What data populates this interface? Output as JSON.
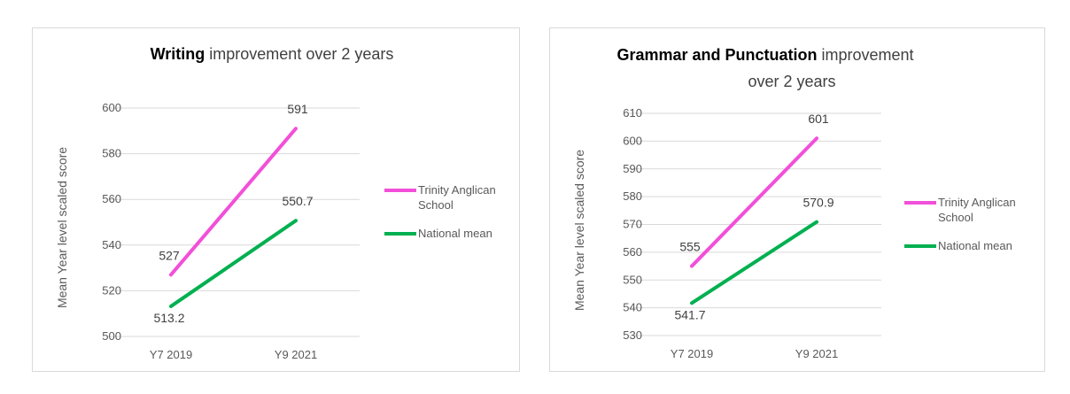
{
  "chart_data": [
    {
      "type": "line",
      "title_bold": "Writing",
      "title_rest": " improvement over 2 years",
      "title_line2": "",
      "ylabel": "Mean Year level scaled score",
      "xlabel": "",
      "categories": [
        "Y7 2019",
        "Y9 2021"
      ],
      "ylim": [
        500,
        600
      ],
      "ystep": 20,
      "yticks": [
        "500",
        "520",
        "540",
        "560",
        "580",
        "600"
      ],
      "grid": true,
      "legend_position": "right",
      "series": [
        {
          "name_line1": "Trinity Anglican",
          "name_line2": "School",
          "color": "#f24fd9",
          "values": [
            527,
            591
          ],
          "labels": [
            "527",
            "591"
          ]
        },
        {
          "name_line1": "National mean",
          "name_line2": "",
          "color": "#00b050",
          "values": [
            513.2,
            550.7
          ],
          "labels": [
            "513.2",
            "550.7"
          ]
        }
      ]
    },
    {
      "type": "line",
      "title_bold": "Grammar and Punctuation",
      "title_rest": " improvement",
      "title_line2": "over 2 years",
      "ylabel": "Mean Year level scaled score",
      "xlabel": "",
      "categories": [
        "Y7 2019",
        "Y9 2021"
      ],
      "ylim": [
        530,
        610
      ],
      "ystep": 10,
      "yticks": [
        "530",
        "540",
        "550",
        "560",
        "570",
        "580",
        "590",
        "600",
        "610"
      ],
      "grid": true,
      "legend_position": "right",
      "series": [
        {
          "name_line1": "Trinity Anglican",
          "name_line2": "School",
          "color": "#f24fd9",
          "values": [
            555,
            601
          ],
          "labels": [
            "555",
            "601"
          ]
        },
        {
          "name_line1": "National mean",
          "name_line2": "",
          "color": "#00b050",
          "values": [
            541.7,
            570.9
          ],
          "labels": [
            "541.7",
            "570.9"
          ]
        }
      ]
    }
  ]
}
